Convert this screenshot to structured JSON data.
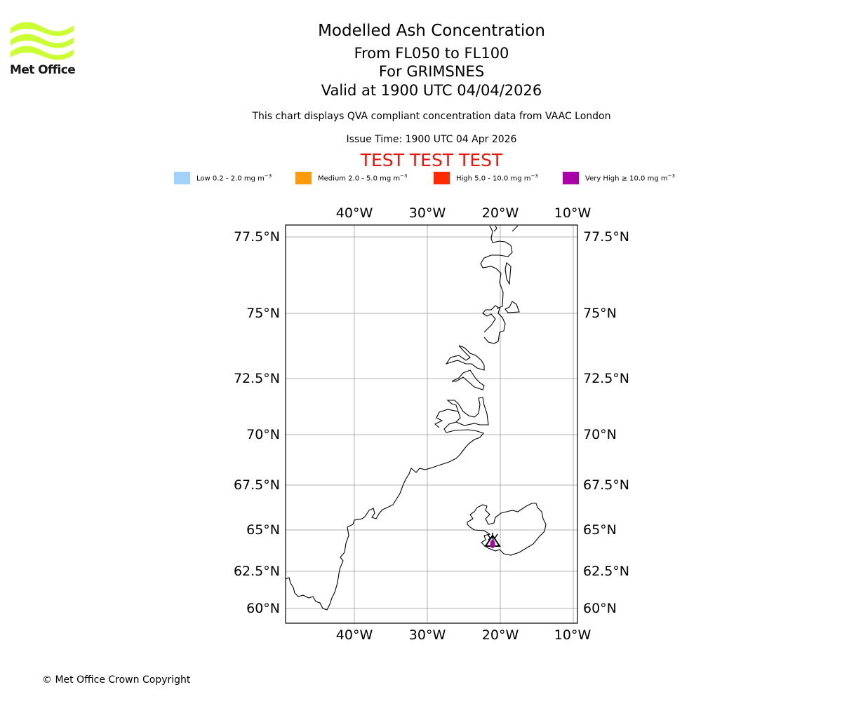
{
  "header": {
    "title": "Modelled Ash Concentration",
    "level_range": "From FL050 to FL100",
    "volcano": "For GRIMSNES",
    "valid_time": "Valid at 1900 UTC 04/04/2026",
    "description": "This chart displays QVA compliant concentration data from VAAC London",
    "issue_time": "Issue Time: 1900 UTC 04 Apr 2026",
    "test_banner": "TEST TEST TEST"
  },
  "brand": {
    "name": "Met Office",
    "color": "#ccff33"
  },
  "legend": [
    {
      "label": "Low 0.2 - 2.0 mg m",
      "color": "#a0d2fa"
    },
    {
      "label": "Medium 2.0 - 5.0 mg m",
      "color": "#ff9a0a"
    },
    {
      "label": "High 5.0 - 10.0 mg m",
      "color": "#ff2a00"
    },
    {
      "label": "Very High ≥ 10.0 mg m",
      "color": "#aa00aa"
    }
  ],
  "legend_exponent": "−3",
  "map": {
    "longitude_labels": [
      "40°W",
      "30°W",
      "20°W",
      "10°W"
    ],
    "latitude_labels": [
      "77.5°N",
      "75°N",
      "72.5°N",
      "70°N",
      "67.5°N",
      "65°N",
      "62.5°N",
      "60°N"
    ],
    "volcano_marker": "volcano-triangle-icon"
  },
  "footer": {
    "copyright": "© Met Office Crown Copyright"
  }
}
